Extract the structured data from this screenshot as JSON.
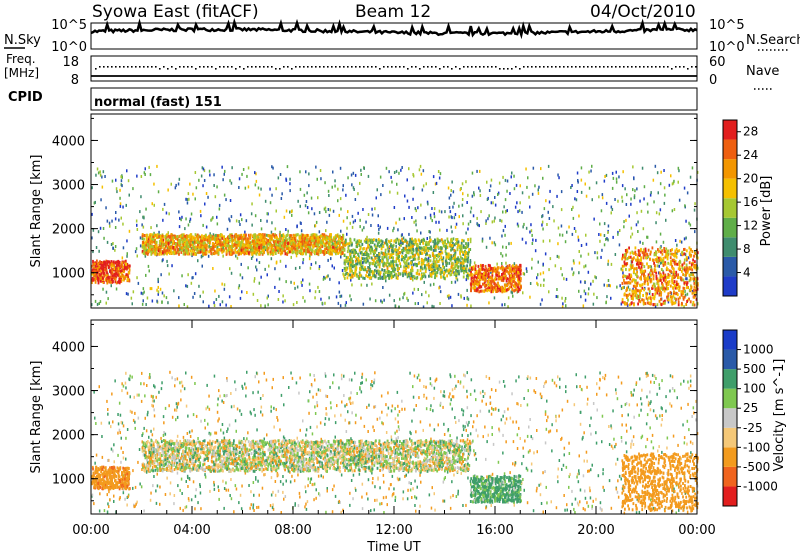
{
  "header": {
    "station": "Syowa East (fitACF)",
    "beam": "Beam 12",
    "date": "04/Oct/2010"
  },
  "nsky_panel": {
    "left_label": "N.Sky",
    "right_label": "N.Search",
    "y_top": "10^5",
    "y_bottom": "10^0",
    "right_top": "10^5",
    "right_bottom": "10^0"
  },
  "freq_panel": {
    "left_label_1": "Freq.",
    "left_label_2": "[MHz]",
    "right_label": "Nave",
    "y_top": "18",
    "y_bottom": "8",
    "right_top": "60",
    "right_bottom": "0"
  },
  "cpid_panel": {
    "label": "CPID",
    "mode": "normal (fast) 151"
  },
  "colors": {
    "power": [
      "#1f3cc8",
      "#2a5aa8",
      "#3f8c6e",
      "#5fae48",
      "#a6c832",
      "#f5c000",
      "#f39600",
      "#ee5f10",
      "#e21e1e"
    ],
    "velocity": [
      "#e21e1e",
      "#f0641e",
      "#f39b1e",
      "#f5c878",
      "#c8c8c8",
      "#7fc850",
      "#3f9e6a",
      "#2a5aa8",
      "#1a3cc8"
    ]
  },
  "chart_data": [
    {
      "type": "heatmap",
      "panel": "power",
      "ylabel": "Slant Range [km]",
      "ylim": [
        200,
        4600
      ],
      "yticks": [
        "1000",
        "2000",
        "3000",
        "4000"
      ],
      "xlim": [
        "00:00",
        "24:00"
      ],
      "colorbar": {
        "label": "Power [dB]",
        "range": [
          0,
          30
        ],
        "ticks": [
          "4",
          "8",
          "12",
          "16",
          "20",
          "24",
          "28"
        ]
      },
      "echo_bands": [
        {
          "t_start": 0.0,
          "t_end": 1.5,
          "range_low": 800,
          "range_high": 1300,
          "power": 26
        },
        {
          "t_start": 2.0,
          "t_end": 10.0,
          "range_low": 1450,
          "range_high": 1900,
          "power": 20
        },
        {
          "t_start": 10.0,
          "t_end": 15.0,
          "range_low": 900,
          "range_high": 1800,
          "power": 14
        },
        {
          "t_start": 15.0,
          "t_end": 17.0,
          "range_low": 600,
          "range_high": 1200,
          "power": 24
        },
        {
          "t_start": 21.0,
          "t_end": 24.0,
          "range_low": 300,
          "range_high": 1600,
          "power": 22
        }
      ]
    },
    {
      "type": "heatmap",
      "panel": "velocity",
      "ylabel": "Slant Range [km]",
      "ylim": [
        200,
        4600
      ],
      "yticks": [
        "1000",
        "2000",
        "3000",
        "4000"
      ],
      "xlabel": "Time UT",
      "xticks": [
        "00:00",
        "04:00",
        "08:00",
        "12:00",
        "16:00",
        "20:00",
        "00:00"
      ],
      "colorbar": {
        "label": "Velocity [m s^-1]",
        "ticks": [
          "1000",
          "500",
          "100",
          "25",
          "-25",
          "-100",
          "-500",
          "-1000"
        ]
      },
      "echo_bands": [
        {
          "t_start": 0.0,
          "t_end": 1.5,
          "range_low": 800,
          "range_high": 1300,
          "velocity": -400
        },
        {
          "t_start": 2.0,
          "t_end": 15.0,
          "range_low": 1200,
          "range_high": 1900,
          "velocity": 0
        },
        {
          "t_start": 15.0,
          "t_end": 17.0,
          "range_low": 500,
          "range_high": 1100,
          "velocity": 150
        },
        {
          "t_start": 21.0,
          "t_end": 24.0,
          "range_low": 300,
          "range_high": 1600,
          "velocity": -300
        }
      ]
    }
  ]
}
